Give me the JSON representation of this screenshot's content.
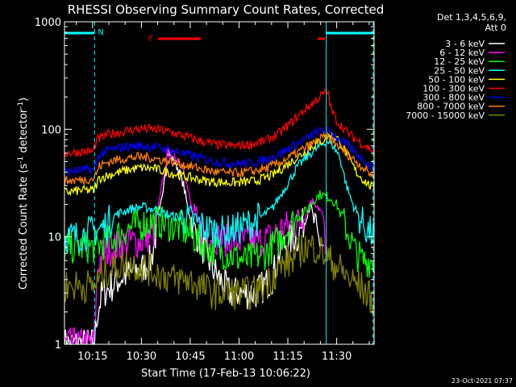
{
  "chart_data": {
    "type": "line",
    "title": "RHESSI Observing Summary Count Rates, Corrected",
    "xlabel": "Start Time (17-Feb-13 10:06:22)",
    "ylabel_main": "Corrected Count Rate (s",
    "ylabel_sup": "-1",
    "ylabel_tail": " detector",
    "ylabel_end": ")",
    "y_scale": "log",
    "ylim": [
      1,
      1000
    ],
    "xlim": [
      6.37,
      101.5
    ],
    "x_ticks": [
      {
        "v": 15,
        "label": "10:15"
      },
      {
        "v": 30,
        "label": "10:30"
      },
      {
        "v": 45,
        "label": "10:45"
      },
      {
        "v": 60,
        "label": "11:00"
      },
      {
        "v": 75,
        "label": "11:15"
      },
      {
        "v": 90,
        "label": "11:30"
      },
      {
        "v": 105,
        "label": "11:45"
      }
    ],
    "y_ticks": [
      {
        "v": 1,
        "label": "1"
      },
      {
        "v": 10,
        "label": "10"
      },
      {
        "v": 100,
        "label": "100"
      },
      {
        "v": 1000,
        "label": "1000"
      }
    ],
    "legend_header": [
      "Det 1,3,4,5,6,9,",
      "Att 0"
    ],
    "legend_position": "right",
    "footer_date": "23-Oct-2021 07:37",
    "series": [
      {
        "name": "3 - 6 keV",
        "color": "#ffffff",
        "x": [
          6.4,
          15.5,
          16.5,
          18,
          21,
          23,
          26,
          30,
          33,
          36,
          38,
          41,
          43,
          44,
          46,
          48,
          52,
          57,
          61,
          65,
          70,
          73,
          75,
          78,
          80,
          82,
          84,
          86
        ],
        "y": [
          1,
          1,
          2,
          3,
          3.5,
          4,
          4.5,
          5,
          6,
          20,
          62,
          45,
          30,
          20,
          12,
          9,
          5,
          3,
          3,
          3,
          4,
          8,
          9,
          10,
          14,
          20,
          10,
          8
        ]
      },
      {
        "name": "6 - 12 keV",
        "color": "#ff00ff",
        "x": [
          6.4,
          15.5,
          16.5,
          18,
          22,
          26,
          30,
          34,
          38,
          41,
          43,
          44,
          46,
          48,
          52,
          57,
          62,
          66,
          70,
          73,
          76,
          79,
          81,
          82,
          84,
          86,
          86.5
        ],
        "y": [
          1,
          1,
          5,
          7,
          8,
          9,
          9,
          11,
          60,
          55,
          45,
          30,
          15,
          12,
          10,
          9,
          9,
          9,
          10,
          12,
          13,
          14,
          17,
          22,
          20,
          15,
          6
        ]
      },
      {
        "name": "12 - 25 keV",
        "color": "#00ff00",
        "x": [
          6.4,
          12,
          15,
          18,
          22,
          26,
          30,
          34,
          38,
          42,
          46,
          50,
          56,
          62,
          68,
          72,
          75,
          78,
          81,
          83,
          85,
          88,
          90,
          92,
          94,
          96,
          98,
          101.5
        ],
        "y": [
          8,
          8,
          8,
          8.5,
          10,
          12,
          13,
          14,
          13,
          12,
          10,
          8,
          7,
          6,
          7,
          9,
          12,
          15,
          18,
          22,
          25,
          23,
          20,
          14,
          10,
          7,
          6,
          6
        ]
      },
      {
        "name": "25 - 50 keV",
        "color": "#00ffff",
        "x": [
          6.4,
          10,
          14,
          18,
          22,
          26,
          30,
          34,
          38,
          42,
          46,
          50,
          55,
          60,
          65,
          70,
          74,
          78,
          82,
          85,
          87,
          89,
          91,
          93,
          95,
          97,
          99,
          101.5
        ],
        "y": [
          10,
          10,
          11,
          12,
          16,
          18,
          19,
          18,
          16,
          15,
          14,
          12,
          11,
          12,
          14,
          18,
          28,
          45,
          60,
          70,
          78,
          70,
          55,
          30,
          20,
          15,
          12,
          10
        ]
      },
      {
        "name": "50 - 100 keV",
        "color": "#ffff00",
        "x": [
          6.4,
          12,
          15.5,
          17,
          22,
          26,
          30,
          34,
          38,
          42,
          46,
          50,
          55,
          60,
          65,
          70,
          74,
          78,
          82,
          86,
          88,
          90,
          93,
          96,
          99,
          101.5
        ],
        "y": [
          26,
          27,
          27,
          35,
          39,
          42,
          44,
          43,
          40,
          37,
          35,
          33,
          32,
          32,
          33,
          37,
          45,
          55,
          68,
          80,
          88,
          84,
          60,
          40,
          32,
          28
        ]
      },
      {
        "name": "100 - 300 keV",
        "color": "#ff0000",
        "x": [
          6.4,
          12,
          15,
          16.5,
          20,
          24,
          28,
          32,
          36,
          40,
          44,
          48,
          53,
          58,
          63,
          68,
          72,
          76,
          80,
          84,
          86,
          87.5,
          88,
          90,
          93,
          96,
          99,
          101.5
        ],
        "y": [
          60,
          62,
          62,
          80,
          90,
          95,
          100,
          101,
          98,
          92,
          85,
          78,
          72,
          70,
          72,
          78,
          90,
          115,
          150,
          190,
          215,
          220,
          160,
          120,
          95,
          80,
          70,
          62
        ]
      },
      {
        "name": "300 - 800 keV",
        "color": "#0000ff",
        "x": [
          6.4,
          12,
          15.5,
          17,
          20,
          24,
          28,
          32,
          36,
          40,
          44,
          48,
          53,
          58,
          63,
          68,
          72,
          76,
          80,
          84,
          86,
          88,
          90,
          93,
          96,
          99,
          101.5
        ],
        "y": [
          40,
          42,
          42,
          58,
          64,
          68,
          70,
          70,
          67,
          63,
          58,
          54,
          50,
          48,
          48,
          52,
          58,
          68,
          80,
          93,
          98,
          95,
          85,
          72,
          60,
          50,
          42
        ]
      },
      {
        "name": "800 - 7000 keV",
        "color": "#ff8000",
        "x": [
          6.4,
          12,
          15.5,
          17,
          20,
          24,
          28,
          32,
          36,
          40,
          44,
          48,
          53,
          58,
          63,
          68,
          72,
          76,
          80,
          84,
          86,
          88,
          90,
          93,
          96,
          99,
          101.5
        ],
        "y": [
          33,
          34,
          35,
          45,
          50,
          53,
          55,
          55,
          52,
          49,
          46,
          43,
          40,
          39,
          40,
          43,
          48,
          56,
          66,
          78,
          84,
          82,
          72,
          60,
          50,
          42,
          36
        ]
      },
      {
        "name": "7000 - 15000 keV",
        "color": "#808000",
        "x": [
          6.4,
          12,
          15.5,
          17,
          20,
          24,
          28,
          32,
          36,
          40,
          44,
          48,
          52,
          56,
          60,
          64,
          68,
          72,
          76,
          80,
          84,
          86,
          88,
          91,
          94,
          97,
          99,
          101.5
        ],
        "y": [
          3.5,
          3.5,
          3.5,
          4,
          5,
          5.5,
          5.5,
          5,
          4.5,
          4,
          4,
          3.5,
          3,
          3,
          3,
          3,
          3.5,
          5,
          6,
          8,
          8,
          7,
          6,
          5,
          4,
          3.5,
          3,
          2.5
        ]
      }
    ],
    "attenuator_flag": {
      "label": "N",
      "color": "#00ffff",
      "intervals": [
        [
          6.4,
          15.6
        ],
        [
          86.8,
          101.5
        ]
      ]
    },
    "flare_flag": {
      "label": "F",
      "color": "#ff0000",
      "intervals": [
        [
          35.2,
          48.3
        ],
        [
          84.2,
          86.4
        ]
      ]
    },
    "vertical_markers": [
      {
        "x": 15.6,
        "style": "dashed"
      },
      {
        "x": 86.8,
        "style": "solid"
      },
      {
        "x": 101.2,
        "style": "dashed"
      }
    ],
    "marker_color": "#00ffff"
  }
}
